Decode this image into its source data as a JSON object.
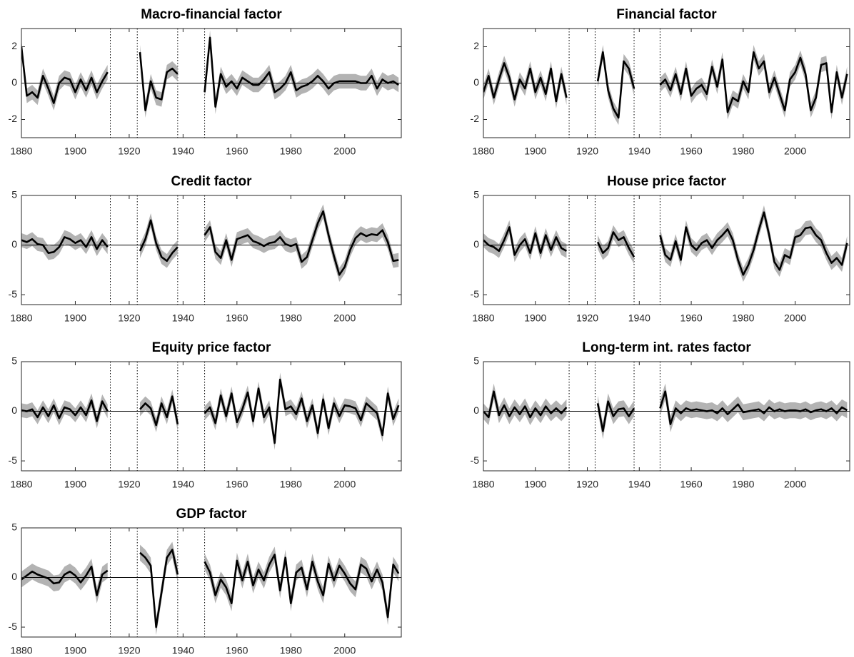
{
  "chart_data": [
    {
      "type": "line",
      "title": "Macro-financial factor",
      "color": "#000000",
      "band_color": "#b3b3b3",
      "band_halfwidth": 0.4,
      "x": [
        1880,
        1882,
        1884,
        1886,
        1888,
        1890,
        1892,
        1894,
        1896,
        1898,
        1900,
        1902,
        1904,
        1906,
        1908,
        1910,
        1912,
        1914,
        1916,
        1918,
        1920,
        1922,
        1924,
        1926,
        1928,
        1930,
        1932,
        1934,
        1936,
        1938,
        1940,
        1942,
        1944,
        1946,
        1948,
        1950,
        1952,
        1954,
        1956,
        1958,
        1960,
        1962,
        1964,
        1966,
        1968,
        1970,
        1972,
        1974,
        1976,
        1978,
        1980,
        1982,
        1984,
        1986,
        1988,
        1990,
        1992,
        1994,
        1996,
        1998,
        2000,
        2002,
        2004,
        2006,
        2008,
        2010,
        2012,
        2014,
        2016,
        2018,
        2020
      ],
      "values": [
        2,
        -0.7,
        -0.5,
        -0.8,
        0.4,
        -0.3,
        -1.1,
        0,
        0.3,
        0.2,
        -0.5,
        0.2,
        -0.4,
        0.3,
        -0.5,
        0.1,
        0.6,
        null,
        null,
        null,
        null,
        null,
        1.7,
        -1.5,
        0.1,
        -0.8,
        -0.9,
        0.6,
        0.8,
        0.5,
        null,
        null,
        null,
        null,
        -0.5,
        2.5,
        -1.3,
        0.5,
        -0.2,
        0.1,
        -0.3,
        0.3,
        0.1,
        -0.1,
        -0.1,
        0.2,
        0.6,
        -0.5,
        -0.3,
        0,
        0.6,
        -0.4,
        -0.2,
        -0.1,
        0.1,
        0.4,
        0.1,
        -0.3,
        0,
        0.1,
        0.1,
        0.1,
        0.1,
        0,
        0,
        0.4,
        -0.3,
        0.2,
        0,
        0.1,
        -0.1
      ],
      "xlim": [
        1880,
        2021
      ],
      "xticks": [
        1880,
        1900,
        1920,
        1940,
        1960,
        1980,
        2000
      ],
      "ylim": [
        -3,
        3
      ],
      "yticks": [
        -2,
        0,
        2
      ],
      "vlines": [
        1913,
        1923,
        1938,
        1948
      ]
    },
    {
      "type": "line",
      "title": "Financial factor",
      "color": "#000000",
      "band_color": "#b3b3b3",
      "band_halfwidth": 0.4,
      "x": [
        1880,
        1882,
        1884,
        1886,
        1888,
        1890,
        1892,
        1894,
        1896,
        1898,
        1900,
        1902,
        1904,
        1906,
        1908,
        1910,
        1912,
        1914,
        1916,
        1918,
        1920,
        1922,
        1924,
        1926,
        1928,
        1930,
        1932,
        1934,
        1936,
        1938,
        1940,
        1942,
        1944,
        1946,
        1948,
        1950,
        1952,
        1954,
        1956,
        1958,
        1960,
        1962,
        1964,
        1966,
        1968,
        1970,
        1972,
        1974,
        1976,
        1978,
        1980,
        1982,
        1984,
        1986,
        1988,
        1990,
        1992,
        1994,
        1996,
        1998,
        2000,
        2002,
        2004,
        2006,
        2008,
        2010,
        2012,
        2014,
        2016,
        2018,
        2020
      ],
      "values": [
        -0.5,
        0.4,
        -0.8,
        0.2,
        1.1,
        0.3,
        -0.9,
        0.2,
        -0.3,
        0.8,
        -0.5,
        0.3,
        -0.6,
        0.8,
        -1.0,
        0.5,
        -0.8,
        null,
        null,
        null,
        null,
        null,
        0.1,
        1.7,
        -0.4,
        -1.4,
        -1.9,
        1.2,
        0.8,
        -0.3,
        null,
        null,
        null,
        null,
        -0.1,
        0.2,
        -0.4,
        0.5,
        -0.6,
        0.8,
        -0.7,
        -0.3,
        -0.1,
        -0.6,
        0.9,
        -0.2,
        1.3,
        -1.6,
        -0.8,
        -1.0,
        0.1,
        -0.5,
        1.7,
        0.8,
        1.2,
        -0.5,
        0.3,
        -0.6,
        -1.5,
        0.2,
        0.6,
        1.4,
        0.5,
        -1.5,
        -0.8,
        1.0,
        1.1,
        -1.6,
        0.6,
        -0.8,
        0.5
      ],
      "xlim": [
        1880,
        2021
      ],
      "xticks": [
        1880,
        1900,
        1920,
        1940,
        1960,
        1980,
        2000
      ],
      "ylim": [
        -3,
        3
      ],
      "yticks": [
        -2,
        0,
        2
      ],
      "vlines": [
        1913,
        1923,
        1938,
        1948
      ]
    },
    {
      "type": "line",
      "title": "Credit factor",
      "color": "#000000",
      "band_color": "#b3b3b3",
      "band_halfwidth": 0.7,
      "x": [
        1880,
        1882,
        1884,
        1886,
        1888,
        1890,
        1892,
        1894,
        1896,
        1898,
        1900,
        1902,
        1904,
        1906,
        1908,
        1910,
        1912,
        1914,
        1916,
        1918,
        1920,
        1922,
        1924,
        1926,
        1928,
        1930,
        1932,
        1934,
        1936,
        1938,
        1940,
        1942,
        1944,
        1946,
        1948,
        1950,
        1952,
        1954,
        1956,
        1958,
        1960,
        1962,
        1964,
        1966,
        1968,
        1970,
        1972,
        1974,
        1976,
        1978,
        1980,
        1982,
        1984,
        1986,
        1988,
        1990,
        1992,
        1994,
        1996,
        1998,
        2000,
        2002,
        2004,
        2006,
        2008,
        2010,
        2012,
        2014,
        2016,
        2018,
        2020
      ],
      "values": [
        0.5,
        0.3,
        0.6,
        0.1,
        0,
        -0.8,
        -0.7,
        -0.2,
        0.8,
        0.6,
        0.2,
        0.5,
        -0.2,
        0.8,
        -0.4,
        0.5,
        -0.2,
        null,
        null,
        null,
        null,
        null,
        -0.6,
        0.6,
        2.5,
        0.2,
        -1.2,
        -1.6,
        -0.8,
        -0.2,
        null,
        null,
        null,
        null,
        1.0,
        1.8,
        -0.7,
        -1.3,
        0.5,
        -1.5,
        0.6,
        0.8,
        1.0,
        0.4,
        0.2,
        -0.1,
        0.2,
        0.3,
        0.8,
        0.1,
        -0.1,
        0.1,
        -1.7,
        -1.2,
        0.5,
        2.2,
        3.4,
        1.0,
        -1.1,
        -3.0,
        -2.2,
        -0.5,
        0.7,
        1.2,
        0.9,
        1.1,
        1.0,
        1.5,
        0.3,
        -1.6,
        -1.5
      ],
      "xlim": [
        1880,
        2021
      ],
      "xticks": [
        1880,
        1900,
        1920,
        1940,
        1960,
        1980,
        2000
      ],
      "ylim": [
        -6,
        5
      ],
      "yticks": [
        -5,
        0,
        5
      ],
      "vlines": [
        1913,
        1923,
        1938,
        1948
      ]
    },
    {
      "type": "line",
      "title": "House price factor",
      "color": "#000000",
      "band_color": "#b3b3b3",
      "band_halfwidth": 0.7,
      "x": [
        1880,
        1882,
        1884,
        1886,
        1888,
        1890,
        1892,
        1894,
        1896,
        1898,
        1900,
        1902,
        1904,
        1906,
        1908,
        1910,
        1912,
        1914,
        1916,
        1918,
        1920,
        1922,
        1924,
        1926,
        1928,
        1930,
        1932,
        1934,
        1936,
        1938,
        1940,
        1942,
        1944,
        1946,
        1948,
        1950,
        1952,
        1954,
        1956,
        1958,
        1960,
        1962,
        1964,
        1966,
        1968,
        1970,
        1972,
        1974,
        1976,
        1978,
        1980,
        1982,
        1984,
        1986,
        1988,
        1990,
        1992,
        1994,
        1996,
        1998,
        2000,
        2002,
        2004,
        2006,
        2008,
        2010,
        2012,
        2014,
        2016,
        2018,
        2020
      ],
      "values": [
        0.5,
        0,
        -0.2,
        -0.6,
        0.5,
        1.8,
        -1.0,
        0,
        0.6,
        -0.8,
        1.2,
        -0.8,
        1.0,
        -0.5,
        0.8,
        -0.3,
        -0.6,
        null,
        null,
        null,
        null,
        null,
        0.3,
        -0.8,
        -0.3,
        1.3,
        0.5,
        0.8,
        -0.3,
        -1.2,
        null,
        null,
        null,
        null,
        1.0,
        -1.0,
        -1.5,
        0.4,
        -1.5,
        1.8,
        0,
        -0.5,
        0.2,
        0.5,
        -0.3,
        0.5,
        1.0,
        1.6,
        0.5,
        -1.5,
        -3.0,
        -2.0,
        -0.5,
        1.5,
        3.3,
        1.0,
        -1.7,
        -2.5,
        -1.0,
        -1.3,
        0.8,
        1.0,
        1.7,
        1.8,
        1.0,
        0.5,
        -0.8,
        -1.8,
        -1.3,
        -2.0,
        0.2
      ],
      "xlim": [
        1880,
        2021
      ],
      "xticks": [
        1880,
        1900,
        1920,
        1940,
        1960,
        1980,
        2000
      ],
      "ylim": [
        -6,
        5
      ],
      "yticks": [
        -5,
        0,
        5
      ],
      "vlines": [
        1913,
        1923,
        1938,
        1948
      ]
    },
    {
      "type": "line",
      "title": "Equity price factor",
      "color": "#000000",
      "band_color": "#b3b3b3",
      "band_halfwidth": 0.7,
      "x": [
        1880,
        1882,
        1884,
        1886,
        1888,
        1890,
        1892,
        1894,
        1896,
        1898,
        1900,
        1902,
        1904,
        1906,
        1908,
        1910,
        1912,
        1914,
        1916,
        1918,
        1920,
        1922,
        1924,
        1926,
        1928,
        1930,
        1932,
        1934,
        1936,
        1938,
        1940,
        1942,
        1944,
        1946,
        1948,
        1950,
        1952,
        1954,
        1956,
        1958,
        1960,
        1962,
        1964,
        1966,
        1968,
        1970,
        1972,
        1974,
        1976,
        1978,
        1980,
        1982,
        1984,
        1986,
        1988,
        1990,
        1992,
        1994,
        1996,
        1998,
        2000,
        2002,
        2004,
        2006,
        2008,
        2010,
        2012,
        2014,
        2016,
        2018,
        2020
      ],
      "values": [
        0.1,
        0,
        0.2,
        -0.6,
        0.4,
        -0.5,
        0.6,
        -0.7,
        0.4,
        0.2,
        -0.4,
        0.4,
        -0.4,
        1.1,
        -1.0,
        1.0,
        0,
        null,
        null,
        null,
        null,
        null,
        0.2,
        0.8,
        0.3,
        -1.4,
        0.8,
        -0.6,
        1.5,
        -1.3,
        null,
        null,
        null,
        null,
        -0.2,
        0.4,
        -1.2,
        1.6,
        -0.5,
        1.8,
        -1.1,
        0.2,
        1.9,
        -1.0,
        2.3,
        -0.6,
        0.4,
        -3.2,
        3.2,
        0.2,
        0.5,
        -0.3,
        1.3,
        -1.0,
        0.6,
        -2.2,
        1.2,
        -1.7,
        0.8,
        -0.5,
        0.6,
        0.5,
        0.3,
        -0.9,
        0.8,
        0.3,
        -0.2,
        -2.4,
        1.8,
        -0.8,
        0.6
      ],
      "xlim": [
        1880,
        2021
      ],
      "xticks": [
        1880,
        1900,
        1920,
        1940,
        1960,
        1980,
        2000
      ],
      "ylim": [
        -6,
        5
      ],
      "yticks": [
        -5,
        0,
        5
      ],
      "vlines": [
        1913,
        1923,
        1938,
        1948
      ]
    },
    {
      "type": "line",
      "title": "Long-term int. rates factor",
      "color": "#000000",
      "band_color": "#b3b3b3",
      "band_halfwidth": 0.8,
      "x": [
        1880,
        1882,
        1884,
        1886,
        1888,
        1890,
        1892,
        1894,
        1896,
        1898,
        1900,
        1902,
        1904,
        1906,
        1908,
        1910,
        1912,
        1914,
        1916,
        1918,
        1920,
        1922,
        1924,
        1926,
        1928,
        1930,
        1932,
        1934,
        1936,
        1938,
        1940,
        1942,
        1944,
        1946,
        1948,
        1950,
        1952,
        1954,
        1956,
        1958,
        1960,
        1962,
        1964,
        1966,
        1968,
        1970,
        1972,
        1974,
        1976,
        1978,
        1980,
        1982,
        1984,
        1986,
        1988,
        1990,
        1992,
        1994,
        1996,
        1998,
        2000,
        2002,
        2004,
        2006,
        2008,
        2010,
        2012,
        2014,
        2016,
        2018,
        2020
      ],
      "values": [
        0,
        -0.6,
        2.0,
        -0.4,
        0.6,
        -0.5,
        0.4,
        -0.3,
        0.5,
        -0.6,
        0.3,
        -0.4,
        0.5,
        -0.2,
        0.3,
        -0.2,
        0.4,
        null,
        null,
        null,
        null,
        null,
        0.8,
        -2.0,
        1.0,
        -0.5,
        0.2,
        0.3,
        -0.5,
        0.3,
        null,
        null,
        null,
        null,
        0.3,
        2.0,
        -1.3,
        0.3,
        -0.2,
        0.3,
        0.1,
        0.2,
        0.1,
        0,
        0.1,
        -0.2,
        0.3,
        -0.3,
        0.2,
        0.7,
        -0.1,
        0,
        0.1,
        0.2,
        -0.2,
        0.4,
        0,
        0.2,
        0,
        0.1,
        0.1,
        0,
        0.2,
        -0.1,
        0.1,
        0.2,
        0,
        0.3,
        -0.2,
        0.4,
        0.1
      ],
      "xlim": [
        1880,
        2021
      ],
      "xticks": [
        1880,
        1900,
        1920,
        1940,
        1960,
        1980,
        2000
      ],
      "ylim": [
        -6,
        5
      ],
      "yticks": [
        -5,
        0,
        5
      ],
      "vlines": [
        1913,
        1923,
        1938,
        1948
      ]
    },
    {
      "type": "line",
      "title": "GDP factor",
      "color": "#000000",
      "band_color": "#b3b3b3",
      "band_halfwidth": 0.8,
      "x": [
        1880,
        1882,
        1884,
        1886,
        1888,
        1890,
        1892,
        1894,
        1896,
        1898,
        1900,
        1902,
        1904,
        1906,
        1908,
        1910,
        1912,
        1914,
        1916,
        1918,
        1920,
        1922,
        1924,
        1926,
        1928,
        1930,
        1932,
        1934,
        1936,
        1938,
        1940,
        1942,
        1944,
        1946,
        1948,
        1950,
        1952,
        1954,
        1956,
        1958,
        1960,
        1962,
        1964,
        1966,
        1968,
        1970,
        1972,
        1974,
        1976,
        1978,
        1980,
        1982,
        1984,
        1986,
        1988,
        1990,
        1992,
        1994,
        1996,
        1998,
        2000,
        2002,
        2004,
        2006,
        2008,
        2010,
        2012,
        2014,
        2016,
        2018,
        2020
      ],
      "values": [
        -0.2,
        0.2,
        0.6,
        0.3,
        0.1,
        -0.1,
        -0.6,
        -0.5,
        0.3,
        0.6,
        0.2,
        -0.5,
        0.2,
        1.1,
        -1.8,
        0.3,
        0.7,
        null,
        null,
        null,
        null,
        null,
        2.5,
        2.0,
        1.2,
        -5.0,
        -1.5,
        2.0,
        2.8,
        0.3,
        null,
        null,
        null,
        null,
        1.6,
        0.5,
        -1.8,
        -0.2,
        -1.0,
        -2.6,
        1.7,
        -0.3,
        1.6,
        -0.8,
        0.8,
        -0.3,
        1.3,
        2.3,
        -1.3,
        2.0,
        -2.6,
        0.5,
        1.0,
        -1.2,
        1.6,
        -0.4,
        -1.8,
        1.4,
        -0.3,
        1.2,
        0.4,
        -0.6,
        -1.2,
        1.3,
        0.9,
        -0.4,
        0.8,
        -0.5,
        -4.0,
        1.3,
        0.4
      ],
      "xlim": [
        1880,
        2021
      ],
      "xticks": [
        1880,
        1900,
        1920,
        1940,
        1960,
        1980,
        2000
      ],
      "ylim": [
        -6,
        5
      ],
      "yticks": [
        -5,
        0,
        5
      ],
      "vlines": [
        1913,
        1923,
        1938,
        1948
      ]
    }
  ]
}
